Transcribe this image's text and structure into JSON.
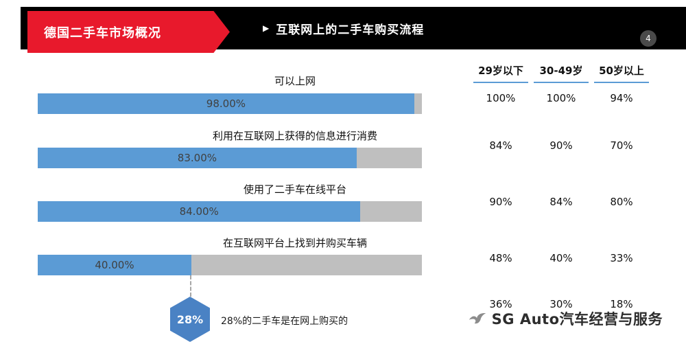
{
  "header": {
    "banner_title": "德国二手车市场概况",
    "bullet": "▶",
    "section_title": "互联网上的二手车购买流程",
    "page_number": "4"
  },
  "chart_data": {
    "type": "bar",
    "orientation": "horizontal",
    "categories": [
      "可以上网",
      "利用在互联网上获得的信息进行消费",
      "使用了二手车在线平台",
      "在互联网平台上找到并购买车辆"
    ],
    "values": [
      98,
      83,
      84,
      40
    ],
    "value_labels": [
      "98.00%",
      "83.00%",
      "84.00%",
      "40.00%"
    ],
    "xlim": [
      0,
      100
    ],
    "bar_color": "#5b9bd5",
    "track_color": "#bfbfbf",
    "callout": {
      "value": 28,
      "value_label": "28%",
      "text": "28%的二手车是在网上购买的"
    },
    "age_table": {
      "columns": [
        "29岁以下",
        "30-49岁",
        "50岁以上"
      ],
      "rows": [
        [
          "100%",
          "100%",
          "94%"
        ],
        [
          "84%",
          "90%",
          "70%"
        ],
        [
          "90%",
          "84%",
          "80%"
        ],
        [
          "48%",
          "40%",
          "33%"
        ],
        [
          "36%",
          "30%",
          "18%"
        ]
      ]
    }
  },
  "watermark": {
    "text": "SG Auto汽车经营与服务"
  },
  "icons": {
    "bird-logo": "swallow-silhouette",
    "section-bullet": "▶"
  },
  "colors": {
    "banner_red": "#e8192c",
    "header_black": "#000000",
    "bar_blue": "#5b9bd5",
    "track_gray": "#bfbfbf",
    "hexagon_blue": "#4a82c4",
    "underline_blue": "#5b9bd5"
  }
}
